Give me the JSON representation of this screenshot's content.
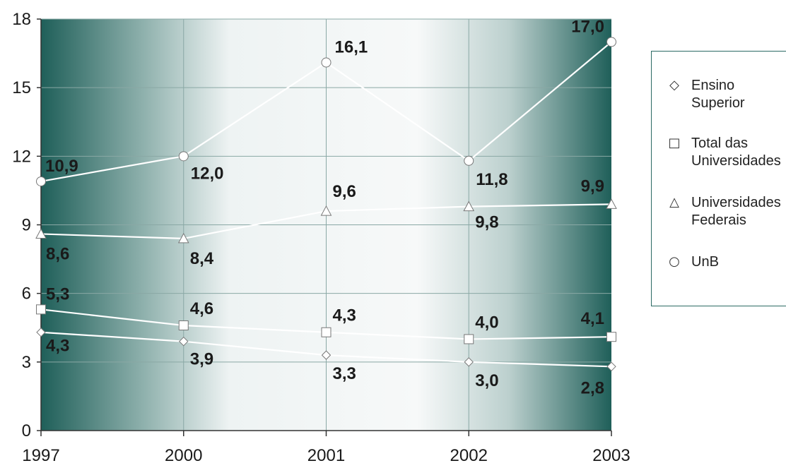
{
  "chart_data": {
    "type": "line",
    "categories": [
      "1997",
      "2000",
      "2001",
      "2002",
      "2003"
    ],
    "ylim": [
      0,
      18
    ],
    "yticks": [
      0,
      3,
      6,
      9,
      12,
      15,
      18
    ],
    "grid": true,
    "legend_position": "right",
    "series": [
      {
        "name": "Ensino Superior",
        "marker": "diamond",
        "values": [
          4.3,
          3.9,
          3.3,
          3.0,
          2.8
        ],
        "labels": [
          "4,3",
          "3,9",
          "3,3",
          "3,0",
          "2,8"
        ]
      },
      {
        "name": "Total das Universidades",
        "marker": "square",
        "values": [
          5.3,
          4.6,
          4.3,
          4.0,
          4.1
        ],
        "labels": [
          "5,3",
          "4,6",
          "4,3",
          "4,0",
          "4,1"
        ]
      },
      {
        "name": "Universidades Federais",
        "marker": "triangle",
        "values": [
          8.6,
          8.4,
          9.6,
          9.8,
          9.9
        ],
        "labels": [
          "8,6",
          "8,4",
          "9,6",
          "9,8",
          "9,9"
        ]
      },
      {
        "name": "UnB",
        "marker": "circle",
        "values": [
          10.9,
          12.0,
          16.1,
          11.8,
          17.0
        ],
        "labels": [
          "10,9",
          "12,0",
          "16,1",
          "11,8",
          "17,0"
        ]
      }
    ]
  },
  "legend": {
    "items": [
      {
        "lines": [
          "Ensino",
          "Superior"
        ],
        "symbol": "◇"
      },
      {
        "lines": [
          "Total das",
          "Universidades"
        ],
        "symbol": "□"
      },
      {
        "lines": [
          "Universidades",
          "Federais"
        ],
        "symbol": "△"
      },
      {
        "lines": [
          "UnB"
        ],
        "symbol": "○"
      }
    ]
  },
  "colors": {
    "dark_teal": "#1f5f59",
    "mid_teal": "#8fb1ad",
    "light_center": "#f7f9f9",
    "line": "#ffffff",
    "marker_stroke": "#7a7a7a",
    "grid": "#7f9f9c"
  }
}
